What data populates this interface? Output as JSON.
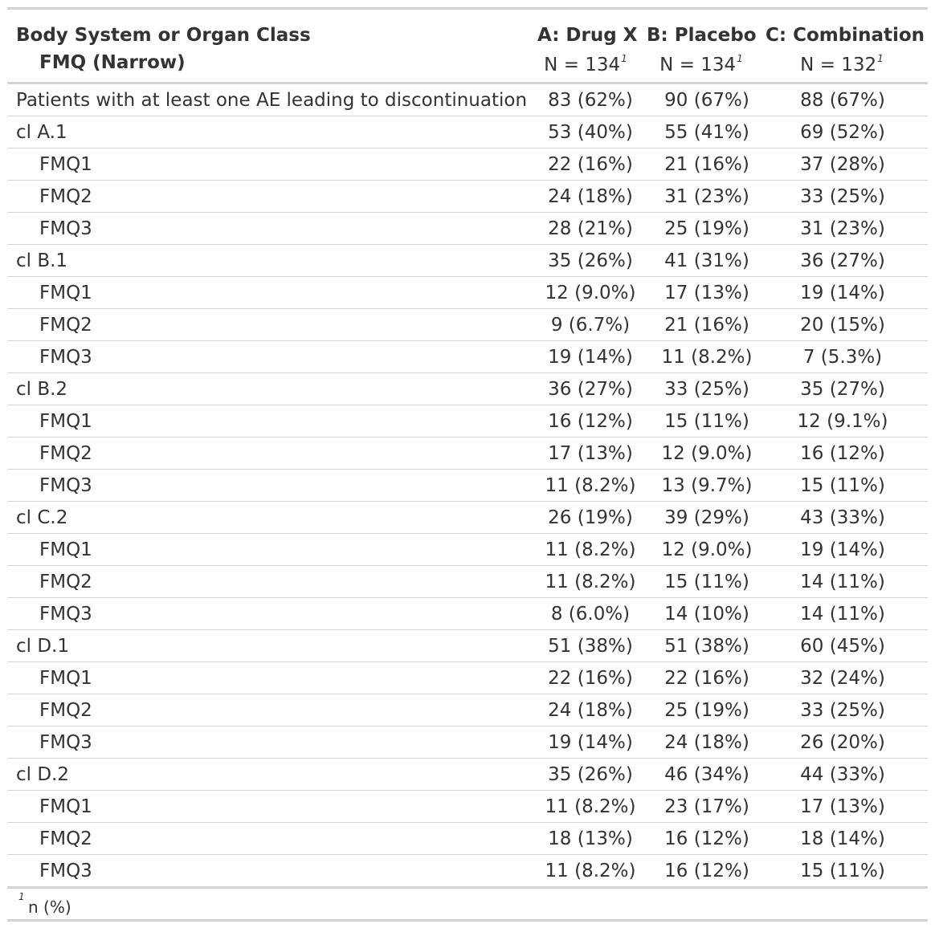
{
  "header": {
    "col0_line1": "Body System or Organ Class",
    "col0_line2": "FMQ (Narrow)",
    "columns": [
      {
        "label": "A: Drug X",
        "n": "N = 134",
        "footnote_mark": "1"
      },
      {
        "label": "B: Placebo",
        "n": "N = 134",
        "footnote_mark": "1"
      },
      {
        "label": "C: Combination",
        "n": "N = 132",
        "footnote_mark": "1"
      }
    ]
  },
  "rows": [
    {
      "label": "Patients with at least one AE leading to discontinuation",
      "indent": false,
      "a": "83 (62%)",
      "b": "90 (67%)",
      "c": "88 (67%)"
    },
    {
      "label": "cl A.1",
      "indent": false,
      "a": "53 (40%)",
      "b": "55 (41%)",
      "c": "69 (52%)"
    },
    {
      "label": "FMQ1",
      "indent": true,
      "a": "22 (16%)",
      "b": "21 (16%)",
      "c": "37 (28%)"
    },
    {
      "label": "FMQ2",
      "indent": true,
      "a": "24 (18%)",
      "b": "31 (23%)",
      "c": "33 (25%)"
    },
    {
      "label": "FMQ3",
      "indent": true,
      "a": "28 (21%)",
      "b": "25 (19%)",
      "c": "31 (23%)"
    },
    {
      "label": "cl B.1",
      "indent": false,
      "a": "35 (26%)",
      "b": "41 (31%)",
      "c": "36 (27%)"
    },
    {
      "label": "FMQ1",
      "indent": true,
      "a": "12 (9.0%)",
      "b": "17 (13%)",
      "c": "19 (14%)"
    },
    {
      "label": "FMQ2",
      "indent": true,
      "a": "9 (6.7%)",
      "b": "21 (16%)",
      "c": "20 (15%)"
    },
    {
      "label": "FMQ3",
      "indent": true,
      "a": "19 (14%)",
      "b": "11 (8.2%)",
      "c": "7 (5.3%)"
    },
    {
      "label": "cl B.2",
      "indent": false,
      "a": "36 (27%)",
      "b": "33 (25%)",
      "c": "35 (27%)"
    },
    {
      "label": "FMQ1",
      "indent": true,
      "a": "16 (12%)",
      "b": "15 (11%)",
      "c": "12 (9.1%)"
    },
    {
      "label": "FMQ2",
      "indent": true,
      "a": "17 (13%)",
      "b": "12 (9.0%)",
      "c": "16 (12%)"
    },
    {
      "label": "FMQ3",
      "indent": true,
      "a": "11 (8.2%)",
      "b": "13 (9.7%)",
      "c": "15 (11%)"
    },
    {
      "label": "cl C.2",
      "indent": false,
      "a": "26 (19%)",
      "b": "39 (29%)",
      "c": "43 (33%)"
    },
    {
      "label": "FMQ1",
      "indent": true,
      "a": "11 (8.2%)",
      "b": "12 (9.0%)",
      "c": "19 (14%)"
    },
    {
      "label": "FMQ2",
      "indent": true,
      "a": "11 (8.2%)",
      "b": "15 (11%)",
      "c": "14 (11%)"
    },
    {
      "label": "FMQ3",
      "indent": true,
      "a": "8 (6.0%)",
      "b": "14 (10%)",
      "c": "14 (11%)"
    },
    {
      "label": "cl D.1",
      "indent": false,
      "a": "51 (38%)",
      "b": "51 (38%)",
      "c": "60 (45%)"
    },
    {
      "label": "FMQ1",
      "indent": true,
      "a": "22 (16%)",
      "b": "22 (16%)",
      "c": "32 (24%)"
    },
    {
      "label": "FMQ2",
      "indent": true,
      "a": "24 (18%)",
      "b": "25 (19%)",
      "c": "33 (25%)"
    },
    {
      "label": "FMQ3",
      "indent": true,
      "a": "19 (14%)",
      "b": "24 (18%)",
      "c": "26 (20%)"
    },
    {
      "label": "cl D.2",
      "indent": false,
      "a": "35 (26%)",
      "b": "46 (34%)",
      "c": "44 (33%)"
    },
    {
      "label": "FMQ1",
      "indent": true,
      "a": "11 (8.2%)",
      "b": "23 (17%)",
      "c": "17 (13%)"
    },
    {
      "label": "FMQ2",
      "indent": true,
      "a": "18 (13%)",
      "b": "16 (12%)",
      "c": "18 (14%)"
    },
    {
      "label": "FMQ3",
      "indent": true,
      "a": "11 (8.2%)",
      "b": "16 (12%)",
      "c": "15 (11%)"
    }
  ],
  "footnote": {
    "mark": "1",
    "text": "n (%)"
  }
}
